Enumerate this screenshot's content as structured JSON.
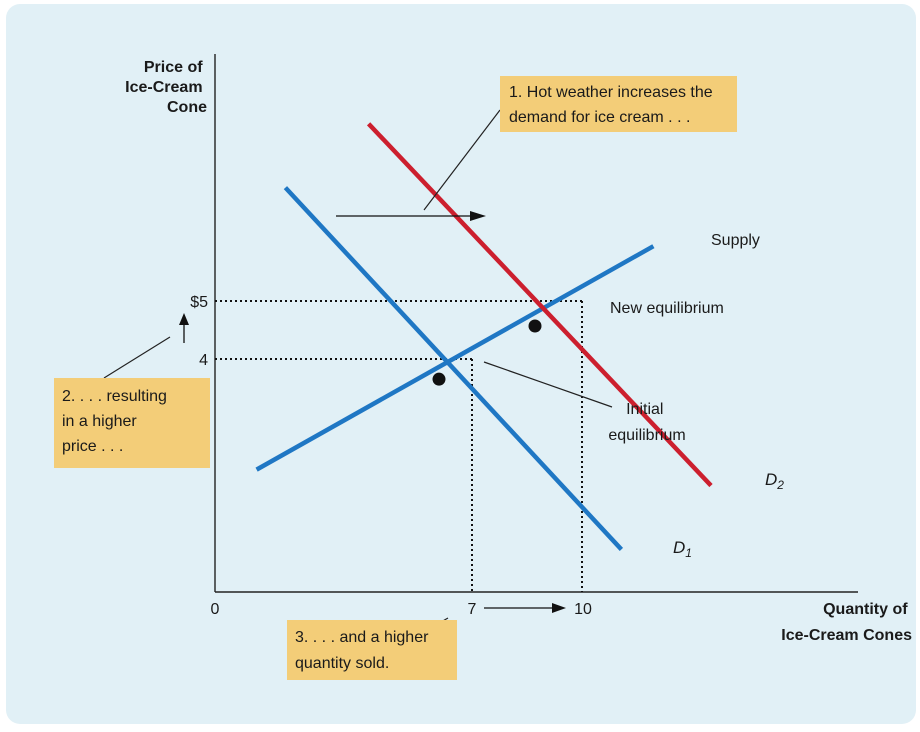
{
  "chart_data": {
    "type": "line",
    "ylabel_lines": [
      "Price of",
      "Ice-Cream",
      "Cone"
    ],
    "xlabel_lines": [
      "Quantity of",
      "Ice-Cream Cones"
    ],
    "x_ticks": [
      {
        "value": 0,
        "label": "0"
      },
      {
        "value": 7,
        "label": "7"
      },
      {
        "value": 10,
        "label": "10"
      }
    ],
    "y_ticks": [
      {
        "value": 4,
        "label": "4"
      },
      {
        "value": 5,
        "label": "$5"
      }
    ],
    "xlim": [
      0,
      20
    ],
    "ylim": [
      0,
      10.3
    ],
    "series": [
      {
        "name": "Supply",
        "color": "#1f77c4",
        "points": [
          [
            1.3,
            2.3
          ],
          [
            13.7,
            6.5
          ]
        ]
      },
      {
        "name": "D",
        "subscript": "1",
        "color": "#1f77c4",
        "points": [
          [
            2.2,
            7.6
          ],
          [
            12.7,
            0.8
          ]
        ]
      },
      {
        "name": "D",
        "subscript": "2",
        "color": "#cc1f2e",
        "points": [
          [
            4.8,
            8.8
          ],
          [
            15.5,
            2.0
          ]
        ]
      }
    ],
    "equilibria": [
      {
        "x": 7,
        "y": 4,
        "label_lines": [
          "Initial",
          "equilibrium"
        ]
      },
      {
        "x": 10,
        "y": 5,
        "label_lines": [
          "New equilibrium"
        ]
      }
    ],
    "annotations": [
      {
        "id": "demand-shift",
        "lines": [
          "1. Hot weather increases the",
          "demand for ice cream . . ."
        ]
      },
      {
        "id": "higher-price",
        "lines": [
          "2. . . . resulting",
          "in a higher",
          "price . . ."
        ]
      },
      {
        "id": "higher-quantity",
        "lines": [
          "3. . . . and a higher",
          "quantity sold."
        ]
      }
    ],
    "colors": {
      "background": "#e1f0f6",
      "callout": "#f3cd78",
      "supply_d1": "#1f77c4",
      "d2": "#cc1f2e"
    }
  }
}
